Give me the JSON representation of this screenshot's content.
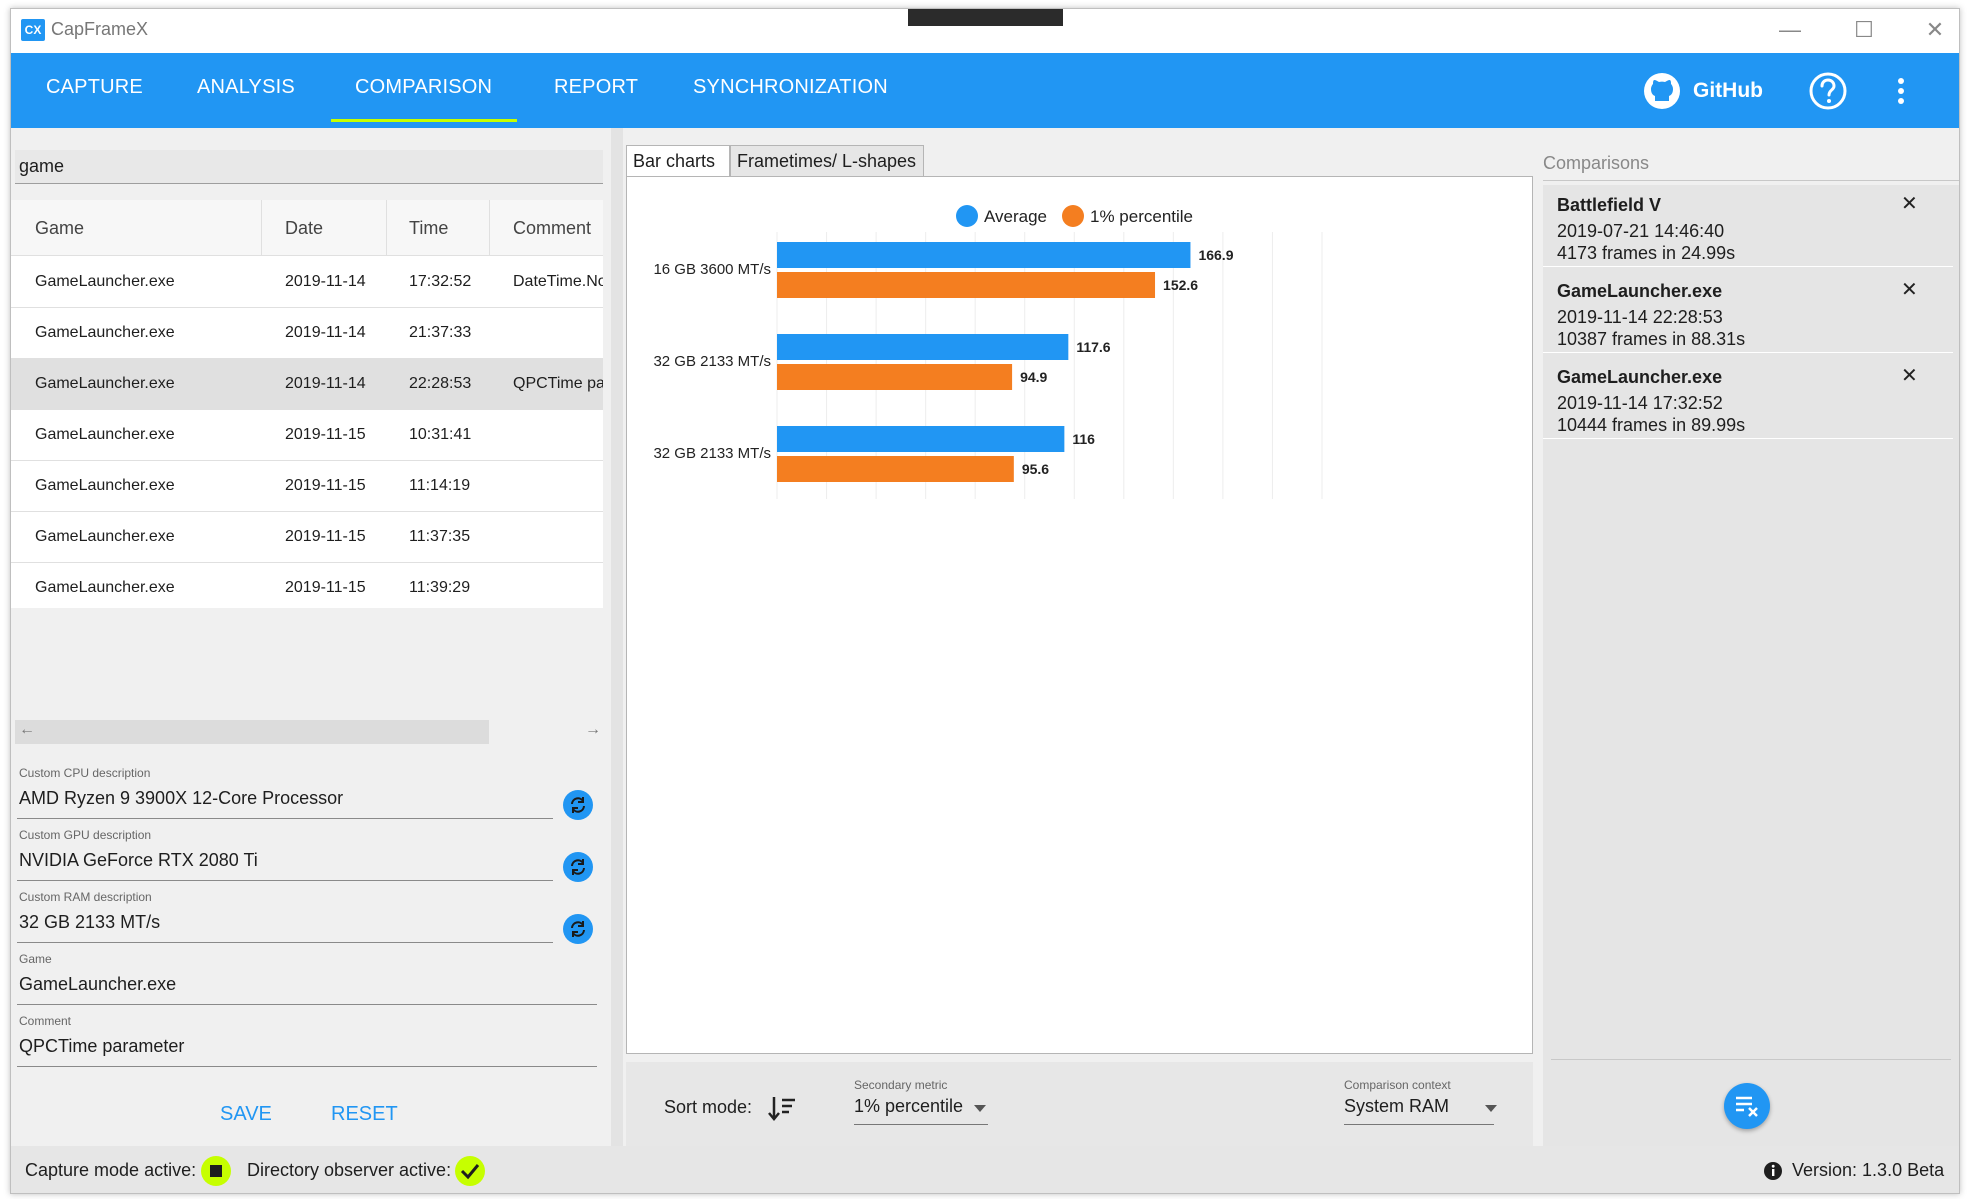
{
  "window": {
    "title": "CapFrameX",
    "icon_text": "CX"
  },
  "nav": {
    "tabs": [
      "CAPTURE",
      "ANALYSIS",
      "COMPARISON",
      "REPORT",
      "SYNCHRONIZATION"
    ],
    "active_tab": "COMPARISON",
    "github_label": "GitHub"
  },
  "left": {
    "search_value": "game",
    "columns": [
      "Game",
      "Date",
      "Time",
      "Comment"
    ],
    "rows": [
      {
        "game": "GameLauncher.exe",
        "date": "2019-11-14",
        "time": "17:32:52",
        "comment": "DateTime.No"
      },
      {
        "game": "GameLauncher.exe",
        "date": "2019-11-14",
        "time": "21:37:33",
        "comment": ""
      },
      {
        "game": "GameLauncher.exe",
        "date": "2019-11-14",
        "time": "22:28:53",
        "comment": "QPCTime pa"
      },
      {
        "game": "GameLauncher.exe",
        "date": "2019-11-15",
        "time": "10:31:41",
        "comment": ""
      },
      {
        "game": "GameLauncher.exe",
        "date": "2019-11-15",
        "time": "11:14:19",
        "comment": ""
      },
      {
        "game": "GameLauncher.exe",
        "date": "2019-11-15",
        "time": "11:37:35",
        "comment": ""
      },
      {
        "game": "GameLauncher.exe",
        "date": "2019-11-15",
        "time": "11:39:29",
        "comment": ""
      }
    ],
    "selected_row": 2,
    "fields": {
      "cpu_label": "Custom CPU description",
      "cpu_value": "AMD Ryzen 9 3900X 12-Core Processor",
      "gpu_label": "Custom GPU description",
      "gpu_value": "NVIDIA GeForce RTX 2080 Ti",
      "ram_label": "Custom RAM description",
      "ram_value": "32 GB 2133 MT/s",
      "game_label": "Game",
      "game_value": "GameLauncher.exe",
      "comment_label": "Comment",
      "comment_value": "QPCTime parameter"
    },
    "save_label": "SAVE",
    "reset_label": "RESET"
  },
  "middle": {
    "tabs": [
      "Bar charts",
      "Frametimes/ L-shapes"
    ],
    "active_tab": "Bar charts",
    "sort_label": "Sort mode:",
    "secondary_metric_label": "Secondary metric",
    "secondary_metric_value": "1% percentile",
    "comparison_context_label": "Comparison context",
    "comparison_context_value": "System RAM"
  },
  "chart_data": {
    "type": "bar",
    "orientation": "horizontal",
    "categories": [
      "16 GB 3600 MT/s",
      "32 GB 2133 MT/s",
      "32 GB 2133 MT/s"
    ],
    "series": [
      {
        "name": "Average",
        "color": "#2196f3",
        "values": [
          166.9,
          117.6,
          116
        ]
      },
      {
        "name": "1% percentile",
        "color": "#f47e20",
        "values": [
          152.6,
          94.9,
          95.6
        ]
      }
    ],
    "xlim": [
      0,
      220
    ],
    "legend": "top-center",
    "grid": true
  },
  "right": {
    "header": "Comparisons",
    "items": [
      {
        "name": "Battlefield V",
        "date": "2019-07-21 14:46:40",
        "frames": "4173 frames in 24.99s"
      },
      {
        "name": "GameLauncher.exe",
        "date": "2019-11-14 22:28:53",
        "frames": "10387 frames in 88.31s"
      },
      {
        "name": "GameLauncher.exe",
        "date": "2019-11-14 17:32:52",
        "frames": "10444 frames in 89.99s"
      }
    ]
  },
  "status": {
    "capture_label": "Capture mode active:",
    "observer_label": "Directory observer active:",
    "version": "Version:  1.3.0 Beta"
  },
  "colors": {
    "accent": "#2196f3",
    "highlight": "#c6ff00",
    "orange": "#f47e20"
  }
}
